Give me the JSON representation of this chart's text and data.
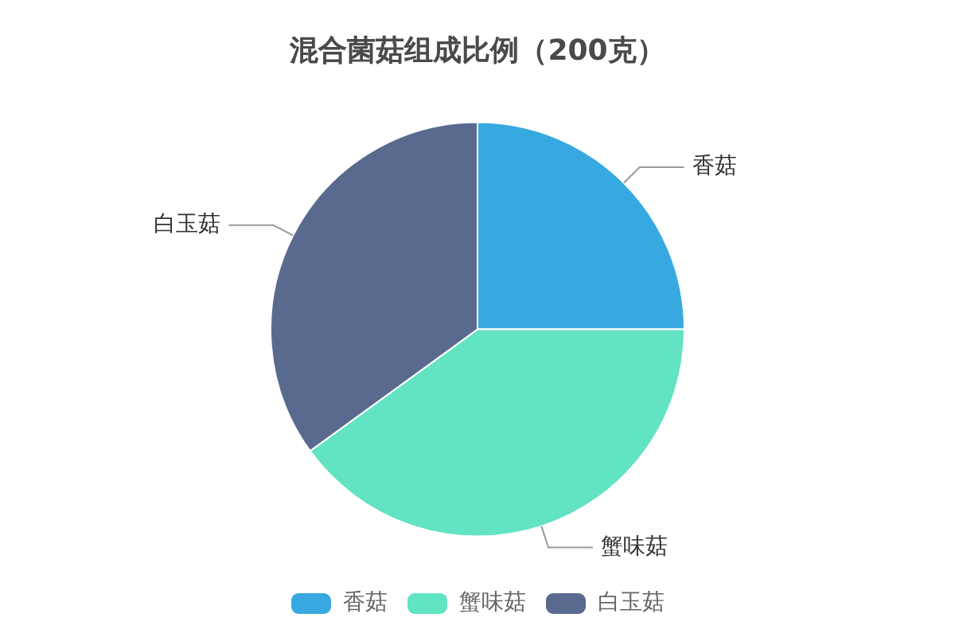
{
  "chart_data": {
    "type": "pie",
    "title": "混合菌菇组成比例（200克）",
    "categories": [
      "香菇",
      "蟹味菇",
      "白玉菇"
    ],
    "values": [
      25,
      40,
      35
    ],
    "colors": [
      "#37a9e0",
      "#62e3c2",
      "#5a6a8f"
    ],
    "legend": "bottom"
  }
}
